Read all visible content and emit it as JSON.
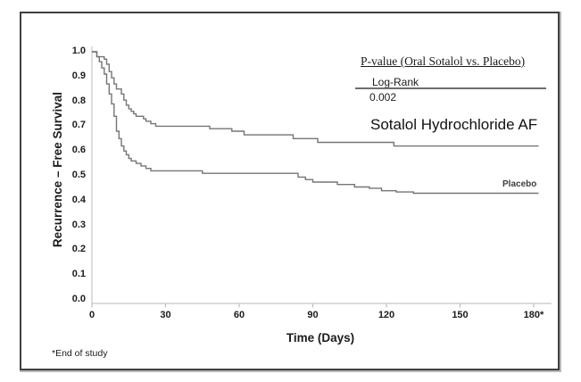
{
  "chart_data": {
    "type": "line",
    "subtype": "kaplan_meier_step_survival",
    "title": "",
    "xlabel": "Time (Days)",
    "ylabel": "Recurrence – Free Survival",
    "xlim": [
      0,
      186
    ],
    "ylim": [
      0.0,
      1.0
    ],
    "grid": false,
    "legend_position": "top-right",
    "x_ticks": {
      "values": [
        0,
        30,
        60,
        90,
        120,
        150,
        180
      ],
      "labels": [
        "0",
        "30",
        "60",
        "90",
        "120",
        "150",
        "180*"
      ]
    },
    "y_ticks": {
      "values": [
        0.0,
        0.1,
        0.2,
        0.3,
        0.4,
        0.5,
        0.6,
        0.7,
        0.8,
        0.9,
        1.0
      ],
      "labels": [
        "0.0",
        "0.1",
        "0.2",
        "0.3",
        "0.4",
        "0.5",
        "0.6",
        "0.7",
        "0.8",
        "0.9",
        "1.0"
      ]
    },
    "series": [
      {
        "name": "Sotalol Hydrochloride AF",
        "points": [
          [
            0,
            1.0
          ],
          [
            2,
            0.98
          ],
          [
            5,
            0.97
          ],
          [
            6,
            0.95
          ],
          [
            7,
            0.92
          ],
          [
            8,
            0.895
          ],
          [
            9,
            0.87
          ],
          [
            10,
            0.85
          ],
          [
            12,
            0.83
          ],
          [
            13,
            0.805
          ],
          [
            14,
            0.785
          ],
          [
            15,
            0.77
          ],
          [
            16,
            0.76
          ],
          [
            17,
            0.75
          ],
          [
            18,
            0.74
          ],
          [
            21,
            0.73
          ],
          [
            22,
            0.72
          ],
          [
            24,
            0.71
          ],
          [
            26,
            0.7
          ],
          [
            48,
            0.69
          ],
          [
            57,
            0.68
          ],
          [
            62,
            0.665
          ],
          [
            82,
            0.65
          ],
          [
            92,
            0.635
          ],
          [
            123,
            0.62
          ],
          [
            182,
            0.62
          ]
        ]
      },
      {
        "name": "Placebo",
        "points": [
          [
            0,
            1.0
          ],
          [
            2,
            0.98
          ],
          [
            3,
            0.96
          ],
          [
            4,
            0.935
          ],
          [
            5,
            0.91
          ],
          [
            6,
            0.87
          ],
          [
            7,
            0.83
          ],
          [
            8,
            0.79
          ],
          [
            9,
            0.74
          ],
          [
            10,
            0.68
          ],
          [
            11,
            0.65
          ],
          [
            12,
            0.62
          ],
          [
            13,
            0.6
          ],
          [
            14,
            0.585
          ],
          [
            15,
            0.57
          ],
          [
            16,
            0.56
          ],
          [
            18,
            0.55
          ],
          [
            20,
            0.54
          ],
          [
            22,
            0.53
          ],
          [
            24,
            0.52
          ],
          [
            45,
            0.51
          ],
          [
            84,
            0.495
          ],
          [
            87,
            0.485
          ],
          [
            90,
            0.475
          ],
          [
            100,
            0.465
          ],
          [
            107,
            0.455
          ],
          [
            113,
            0.45
          ],
          [
            118,
            0.44
          ],
          [
            124,
            0.435
          ],
          [
            131,
            0.43
          ],
          [
            182,
            0.43
          ]
        ]
      }
    ]
  },
  "annotations": {
    "pvalue_title": "P-value (Oral Sotalol vs. Placebo)",
    "test_name": "Log-Rank",
    "p_value": "0.002",
    "series_label_sotalol": "Sotalol Hydrochloride AF",
    "series_label_placebo": "Placebo",
    "footnote": "*End of study"
  },
  "colors": {
    "curve": "#757575",
    "axis": "#c6c6c6",
    "tick": "#bdbdbd",
    "text": "#1b1b1b",
    "frame_border": "#3f3f3f",
    "background": "#ffffff"
  }
}
